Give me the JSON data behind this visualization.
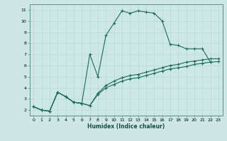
{
  "xlabel": "Humidex (Indice chaleur)",
  "bg_color": "#cde8e4",
  "grid_color": "#b8d8d4",
  "line_color": "#1a6b5a",
  "xlim": [
    -0.5,
    23.5
  ],
  "ylim": [
    1.5,
    11.5
  ],
  "xticks": [
    0,
    1,
    2,
    3,
    4,
    5,
    6,
    7,
    8,
    9,
    10,
    11,
    12,
    13,
    14,
    15,
    16,
    17,
    18,
    19,
    20,
    21,
    22,
    23
  ],
  "yticks": [
    2,
    3,
    4,
    5,
    6,
    7,
    8,
    9,
    10,
    11
  ],
  "series1_x": [
    0,
    1,
    2,
    3,
    4,
    5,
    6,
    7,
    8,
    9,
    10,
    11,
    12,
    13,
    14,
    15,
    16,
    17,
    18,
    19,
    20,
    21,
    22
  ],
  "series1_y": [
    2.3,
    2.0,
    1.9,
    3.6,
    3.2,
    2.7,
    2.6,
    7.0,
    5.0,
    8.7,
    9.8,
    10.9,
    10.7,
    10.9,
    10.8,
    10.7,
    10.0,
    7.9,
    7.8,
    7.5,
    7.5,
    7.5,
    6.3
  ],
  "series2_x": [
    0,
    1,
    2,
    3,
    4,
    5,
    6,
    7,
    8,
    9,
    10,
    11,
    12,
    13,
    14,
    15,
    16,
    17,
    18,
    19,
    20,
    21,
    22,
    23
  ],
  "series2_y": [
    2.3,
    2.0,
    1.9,
    3.6,
    3.2,
    2.7,
    2.6,
    2.4,
    3.4,
    4.0,
    4.3,
    4.6,
    4.8,
    4.9,
    5.1,
    5.3,
    5.5,
    5.7,
    5.8,
    5.9,
    6.1,
    6.2,
    6.3,
    6.35
  ],
  "series3_x": [
    0,
    1,
    2,
    3,
    4,
    5,
    6,
    7,
    8,
    9,
    10,
    11,
    12,
    13,
    14,
    15,
    16,
    17,
    18,
    19,
    20,
    21,
    22,
    23
  ],
  "series3_y": [
    2.3,
    2.0,
    1.9,
    3.6,
    3.2,
    2.7,
    2.6,
    2.4,
    3.5,
    4.2,
    4.6,
    4.9,
    5.1,
    5.2,
    5.4,
    5.6,
    5.8,
    6.0,
    6.1,
    6.3,
    6.4,
    6.5,
    6.6,
    6.6
  ]
}
